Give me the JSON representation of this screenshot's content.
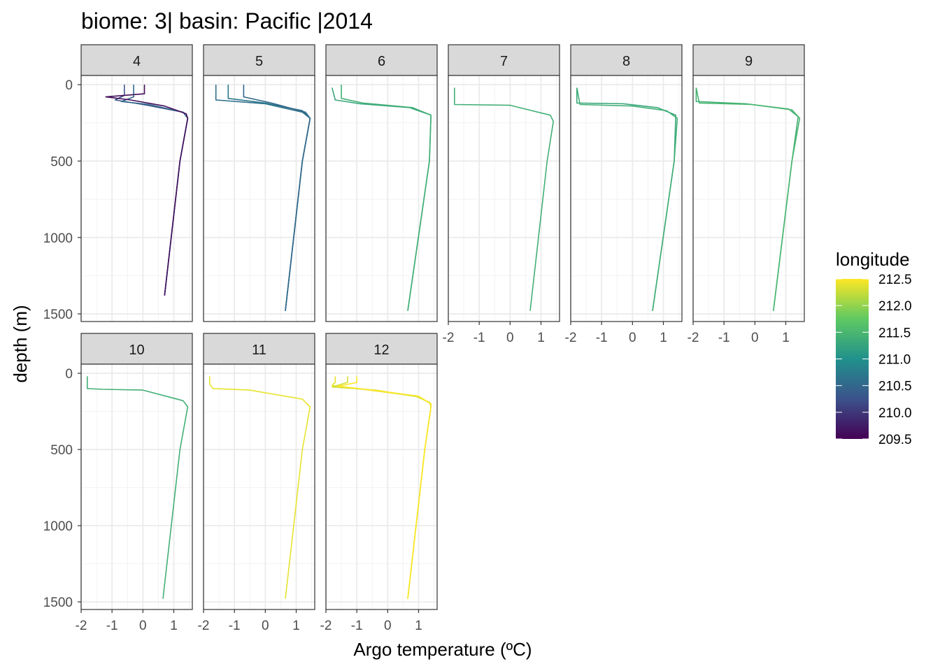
{
  "chart_data": {
    "type": "line",
    "title": "biome: 3| basin: Pacific |2014",
    "xlabel": "Argo temperature (ºC)",
    "ylabel": "depth (m)",
    "xlim": [
      -2,
      1.6
    ],
    "ylim": [
      1550,
      -60
    ],
    "x_ticks": [
      -2,
      -1,
      0,
      1
    ],
    "y_ticks": [
      0,
      500,
      1000,
      1500
    ],
    "legend": {
      "title": "longitude",
      "placement": "right",
      "range": [
        209.5,
        212.5
      ],
      "ticks": [
        212.5,
        212.0,
        211.5,
        211.0,
        210.5,
        210.0,
        209.5
      ]
    },
    "facets": [
      {
        "label": "4",
        "profiles": [
          {
            "longitude": 210.3,
            "points": [
              [
                -0.6,
                0
              ],
              [
                -0.6,
                70
              ],
              [
                -0.9,
                100
              ],
              [
                0.0,
                130
              ],
              [
                1.3,
                180
              ],
              [
                1.45,
                220
              ],
              [
                1.2,
                500
              ],
              [
                0.7,
                1380
              ]
            ]
          },
          {
            "longitude": 210.5,
            "points": [
              [
                -0.3,
                0
              ],
              [
                -0.3,
                80
              ],
              [
                -0.7,
                110
              ],
              [
                0.2,
                130
              ],
              [
                1.3,
                180
              ],
              [
                1.45,
                220
              ],
              [
                1.2,
                500
              ],
              [
                0.7,
                1380
              ]
            ]
          },
          {
            "longitude": 209.6,
            "points": [
              [
                0.05,
                0
              ],
              [
                0.05,
                60
              ],
              [
                -1.2,
                80
              ],
              [
                -0.4,
                100
              ],
              [
                0.7,
                140
              ],
              [
                1.4,
                190
              ],
              [
                1.45,
                220
              ],
              [
                1.2,
                500
              ],
              [
                0.7,
                1380
              ]
            ]
          }
        ]
      },
      {
        "label": "5",
        "profiles": [
          {
            "longitude": 210.6,
            "points": [
              [
                -1.6,
                0
              ],
              [
                -1.6,
                100
              ],
              [
                0.0,
                125
              ],
              [
                1.2,
                180
              ],
              [
                1.45,
                220
              ],
              [
                1.2,
                500
              ],
              [
                0.65,
                1480
              ]
            ]
          },
          {
            "longitude": 210.7,
            "points": [
              [
                -1.2,
                0
              ],
              [
                -1.2,
                90
              ],
              [
                0.0,
                120
              ],
              [
                1.2,
                170
              ],
              [
                1.45,
                220
              ],
              [
                1.2,
                500
              ],
              [
                0.65,
                1480
              ]
            ]
          },
          {
            "longitude": 210.5,
            "points": [
              [
                -0.7,
                0
              ],
              [
                -0.7,
                80
              ],
              [
                0.2,
                120
              ],
              [
                1.3,
                180
              ],
              [
                1.45,
                220
              ],
              [
                1.2,
                500
              ],
              [
                0.65,
                1480
              ]
            ]
          }
        ]
      },
      {
        "label": "6",
        "profiles": [
          {
            "longitude": 211.3,
            "points": [
              [
                -1.8,
                20
              ],
              [
                -1.7,
                100
              ],
              [
                -0.9,
                125
              ],
              [
                0.7,
                150
              ],
              [
                1.4,
                200
              ],
              [
                1.35,
                500
              ],
              [
                0.65,
                1480
              ]
            ]
          },
          {
            "longitude": 211.4,
            "points": [
              [
                -1.5,
                0
              ],
              [
                -1.5,
                90
              ],
              [
                -0.8,
                120
              ],
              [
                0.8,
                150
              ],
              [
                1.4,
                200
              ],
              [
                1.35,
                500
              ],
              [
                0.65,
                1480
              ]
            ]
          }
        ]
      },
      {
        "label": "7",
        "profiles": [
          {
            "longitude": 211.4,
            "points": [
              [
                -1.8,
                20
              ],
              [
                -1.8,
                130
              ],
              [
                0.0,
                135
              ],
              [
                1.3,
                200
              ],
              [
                1.4,
                240
              ],
              [
                1.2,
                500
              ],
              [
                0.65,
                1480
              ]
            ]
          }
        ]
      },
      {
        "label": "8",
        "profiles": [
          {
            "longitude": 211.3,
            "points": [
              [
                -1.8,
                20
              ],
              [
                -1.8,
                120
              ],
              [
                -0.3,
                125
              ],
              [
                0.8,
                150
              ],
              [
                1.4,
                200
              ],
              [
                1.35,
                500
              ],
              [
                0.65,
                1480
              ]
            ]
          },
          {
            "longitude": 211.4,
            "points": [
              [
                -1.8,
                20
              ],
              [
                -1.7,
                130
              ],
              [
                0.0,
                140
              ],
              [
                1.1,
                170
              ],
              [
                1.45,
                220
              ],
              [
                1.35,
                500
              ],
              [
                0.65,
                1480
              ]
            ]
          }
        ]
      },
      {
        "label": "9",
        "profiles": [
          {
            "longitude": 211.4,
            "points": [
              [
                -1.9,
                20
              ],
              [
                -1.9,
                110
              ],
              [
                -0.3,
                125
              ],
              [
                1.1,
                160
              ],
              [
                1.4,
                210
              ],
              [
                1.2,
                500
              ],
              [
                0.6,
                1480
              ]
            ]
          },
          {
            "longitude": 211.5,
            "points": [
              [
                -1.9,
                20
              ],
              [
                -1.8,
                120
              ],
              [
                -0.1,
                130
              ],
              [
                1.2,
                165
              ],
              [
                1.45,
                220
              ],
              [
                1.2,
                500
              ],
              [
                0.6,
                1480
              ]
            ]
          }
        ]
      },
      {
        "label": "10",
        "profiles": [
          {
            "longitude": 211.4,
            "points": [
              [
                -1.8,
                20
              ],
              [
                -1.8,
                100
              ],
              [
                -1.3,
                105
              ],
              [
                0.0,
                110
              ],
              [
                1.3,
                180
              ],
              [
                1.45,
                220
              ],
              [
                1.2,
                500
              ],
              [
                0.65,
                1480
              ]
            ]
          }
        ]
      },
      {
        "label": "11",
        "profiles": [
          {
            "longitude": 212.4,
            "points": [
              [
                -1.8,
                20
              ],
              [
                -1.8,
                70
              ],
              [
                -1.7,
                100
              ],
              [
                -0.5,
                110
              ],
              [
                1.2,
                170
              ],
              [
                1.45,
                220
              ],
              [
                1.2,
                500
              ],
              [
                0.65,
                1480
              ]
            ]
          }
        ]
      },
      {
        "label": "12",
        "profiles": [
          {
            "longitude": 212.4,
            "points": [
              [
                -1.7,
                20
              ],
              [
                -1.7,
                60
              ],
              [
                -1.8,
                80
              ],
              [
                -0.6,
                110
              ],
              [
                0.9,
                150
              ],
              [
                1.35,
                190
              ],
              [
                1.4,
                220
              ],
              [
                1.2,
                500
              ],
              [
                0.65,
                1480
              ]
            ]
          },
          {
            "longitude": 212.3,
            "points": [
              [
                -1.3,
                20
              ],
              [
                -1.3,
                60
              ],
              [
                -1.8,
                90
              ],
              [
                -0.4,
                110
              ],
              [
                1.0,
                155
              ],
              [
                1.4,
                200
              ],
              [
                1.4,
                220
              ],
              [
                1.2,
                500
              ],
              [
                0.65,
                1480
              ]
            ]
          },
          {
            "longitude": 212.5,
            "points": [
              [
                -1.0,
                20
              ],
              [
                -1.0,
                60
              ],
              [
                -1.6,
                85
              ],
              [
                -0.5,
                110
              ],
              [
                1.0,
                150
              ],
              [
                1.4,
                200
              ],
              [
                1.4,
                220
              ],
              [
                1.2,
                500
              ],
              [
                0.65,
                1480
              ]
            ]
          }
        ]
      }
    ]
  }
}
